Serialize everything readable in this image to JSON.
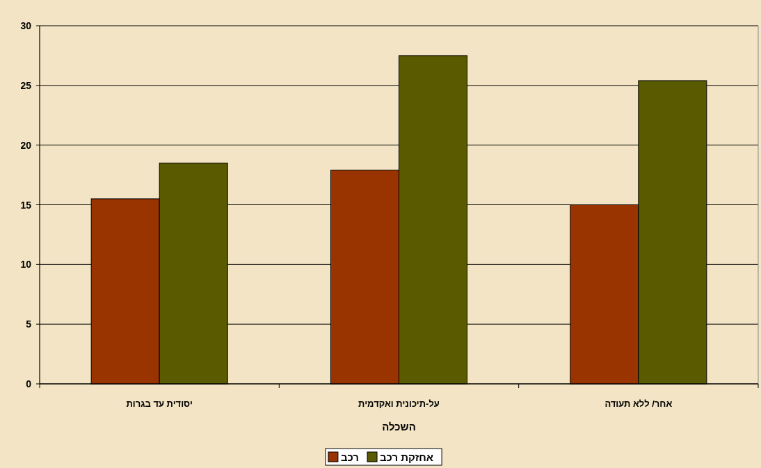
{
  "chart_data": {
    "type": "bar",
    "categories": [
      "יסודית עד בגרות",
      "על-תיכונית ואקדמית",
      "אחר/ ללא תעודה"
    ],
    "xlabel": "השכלה",
    "series": [
      {
        "name": "רכב",
        "color": "#993300",
        "values": [
          15.5,
          17.9,
          15.0
        ]
      },
      {
        "name": "אחזקת רכב",
        "color": "#5a5a00",
        "values": [
          18.5,
          27.5,
          25.4
        ]
      }
    ],
    "ylim": [
      0,
      30
    ],
    "yticks": [
      0,
      5,
      10,
      15,
      20,
      25,
      30
    ],
    "grid": "y",
    "legend": "bottom"
  }
}
